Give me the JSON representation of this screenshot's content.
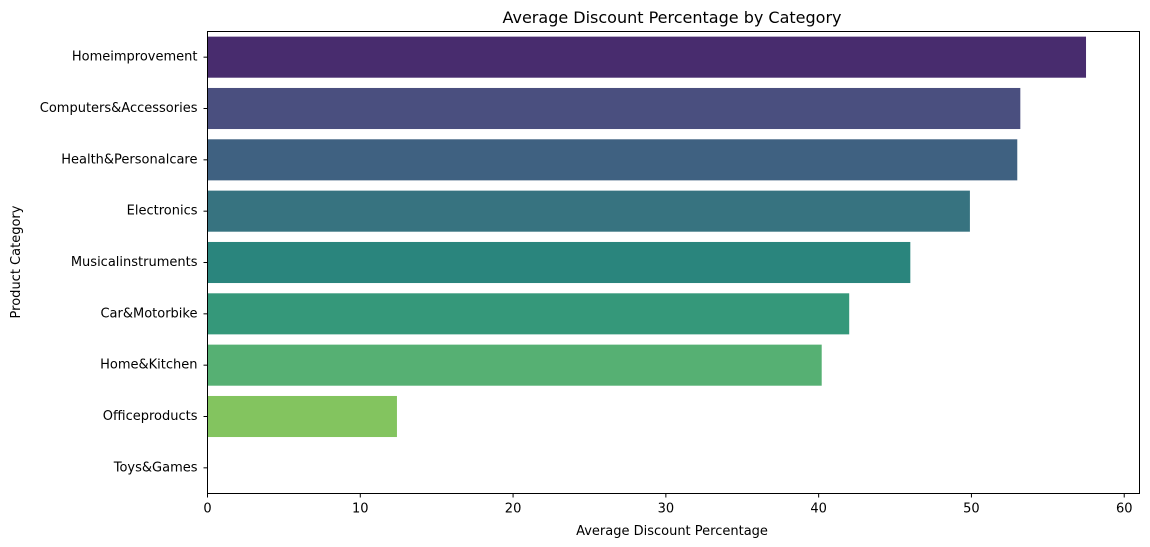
{
  "chart_data": {
    "type": "bar",
    "orientation": "horizontal",
    "title": "Average Discount Percentage by Category",
    "xlabel": "Average Discount Percentage",
    "ylabel": "Product Category",
    "xlim": [
      0,
      61
    ],
    "xticks": [
      0,
      10,
      20,
      30,
      40,
      50,
      60
    ],
    "grid": false,
    "categories": [
      "Homeimprovement",
      "Computers&Accessories",
      "Health&Personalcare",
      "Electronics",
      "Musicalinstruments",
      "Car&Motorbike",
      "Home&Kitchen",
      "Officeproducts",
      "Toys&Games"
    ],
    "values": [
      57.5,
      53.2,
      53.0,
      49.9,
      46.0,
      42.0,
      40.2,
      12.4,
      0
    ],
    "colors": [
      "#482c6e",
      "#4a4f7f",
      "#3f6181",
      "#377380",
      "#2a857d",
      "#35987a",
      "#56b073",
      "#83c45f",
      "#c7df38"
    ]
  }
}
